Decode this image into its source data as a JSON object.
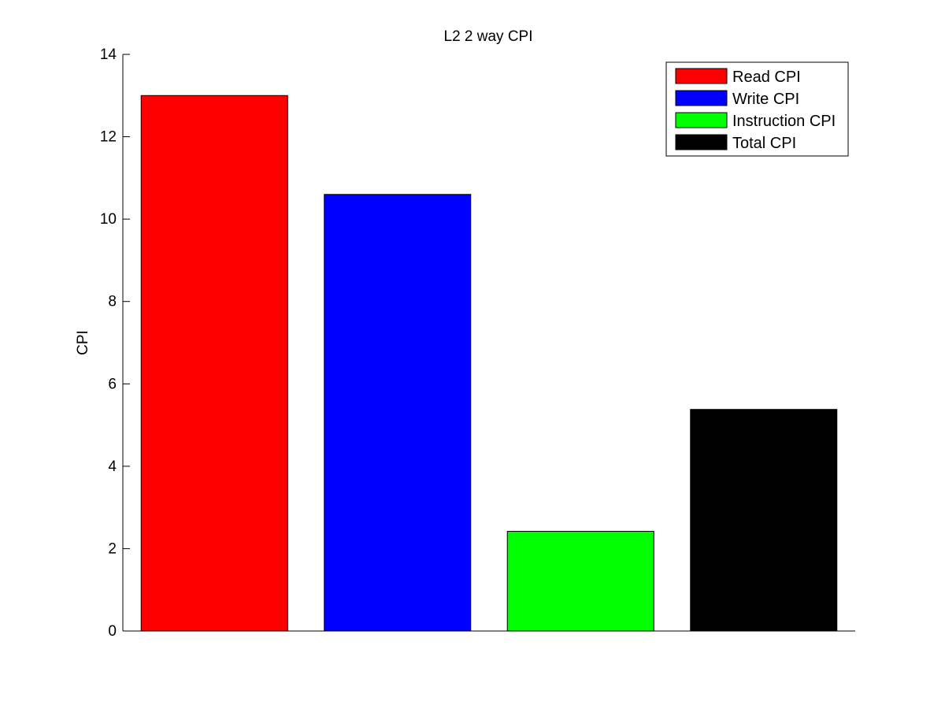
{
  "chart_data": {
    "type": "bar",
    "title": "L2 2 way CPI",
    "xlabel": "",
    "ylabel": "CPI",
    "categories": [
      "Read CPI",
      "Write CPI",
      "Instruction CPI",
      "Total CPI"
    ],
    "values": [
      13.0,
      10.6,
      2.42,
      5.38
    ],
    "colors": [
      "#ff0000",
      "#0000ff",
      "#00ff00",
      "#000000"
    ],
    "ylim": [
      0,
      14
    ],
    "yticks": [
      0,
      2,
      4,
      6,
      8,
      10,
      12,
      14
    ],
    "grid": false,
    "legend": {
      "placement": "top-right",
      "entries": [
        "Read CPI",
        "Write CPI",
        "Instruction CPI",
        "Total CPI"
      ]
    }
  }
}
